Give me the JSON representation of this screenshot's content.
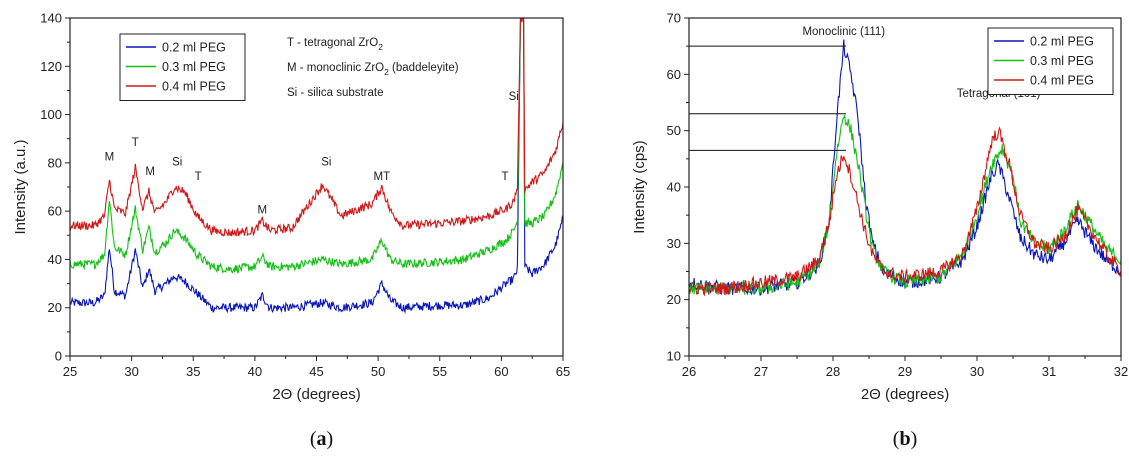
{
  "chart_data": [
    {
      "type": "line",
      "caption_letter": "a",
      "xlabel": "2Θ (degrees)",
      "ylabel": "Intensity (a.u.)",
      "xlim": [
        25,
        65
      ],
      "ylim": [
        0,
        140
      ],
      "xticks": [
        25,
        30,
        35,
        40,
        45,
        50,
        55,
        60,
        65
      ],
      "yticks": [
        0,
        20,
        40,
        60,
        80,
        100,
        120,
        140
      ],
      "legend_position": "top-left",
      "legend_box": "outlined",
      "series": [
        {
          "name": "0.2 ml PEG",
          "color": "#0a16b8",
          "points": [
            [
              25,
              22
            ],
            [
              27,
              22
            ],
            [
              27.8,
              25
            ],
            [
              28.2,
              45
            ],
            [
              28.6,
              27
            ],
            [
              29.5,
              25
            ],
            [
              30.3,
              44
            ],
            [
              30.9,
              28
            ],
            [
              31.4,
              36
            ],
            [
              31.9,
              27
            ],
            [
              32.8,
              30
            ],
            [
              33.5,
              33
            ],
            [
              34.3,
              31
            ],
            [
              35.3,
              26
            ],
            [
              36.5,
              20
            ],
            [
              38,
              20
            ],
            [
              40,
              20
            ],
            [
              40.6,
              25
            ],
            [
              41.2,
              20
            ],
            [
              43,
              20
            ],
            [
              45.5,
              22
            ],
            [
              47,
              20
            ],
            [
              49.5,
              22
            ],
            [
              50.3,
              30
            ],
            [
              51,
              23
            ],
            [
              52,
              20
            ],
            [
              55,
              21
            ],
            [
              57,
              21
            ],
            [
              59,
              24
            ],
            [
              60.4,
              30
            ],
            [
              61,
              32
            ],
            [
              61.3,
              36
            ],
            [
              61.55,
              140
            ],
            [
              61.8,
              140
            ],
            [
              61.9,
              37
            ],
            [
              62.5,
              34
            ],
            [
              63.5,
              38
            ],
            [
              64.4,
              46
            ],
            [
              65,
              57
            ]
          ]
        },
        {
          "name": "0.3 ml PEG",
          "color": "#16c016",
          "points": [
            [
              25,
              38
            ],
            [
              27,
              38
            ],
            [
              27.8,
              42
            ],
            [
              28.2,
              65
            ],
            [
              28.6,
              45
            ],
            [
              29.5,
              42
            ],
            [
              30.3,
              61
            ],
            [
              30.9,
              44
            ],
            [
              31.4,
              53
            ],
            [
              31.9,
              43
            ],
            [
              32.8,
              47
            ],
            [
              33.5,
              52
            ],
            [
              34.3,
              49
            ],
            [
              35.3,
              42
            ],
            [
              36.5,
              37
            ],
            [
              38,
              36
            ],
            [
              40,
              37
            ],
            [
              40.6,
              41
            ],
            [
              41.2,
              37
            ],
            [
              43,
              37
            ],
            [
              45.5,
              40
            ],
            [
              47,
              38
            ],
            [
              49.5,
              40
            ],
            [
              50.3,
              48
            ],
            [
              51,
              40
            ],
            [
              52,
              38
            ],
            [
              55,
              39
            ],
            [
              57,
              40
            ],
            [
              59,
              44
            ],
            [
              60.4,
              48
            ],
            [
              61,
              52
            ],
            [
              61.3,
              56
            ],
            [
              61.55,
              140
            ],
            [
              61.8,
              140
            ],
            [
              61.9,
              55
            ],
            [
              62.5,
              55
            ],
            [
              63.5,
              58
            ],
            [
              64.4,
              67
            ],
            [
              65,
              80
            ]
          ]
        },
        {
          "name": "0.4 ml PEG",
          "color": "#d01818",
          "points": [
            [
              25,
              54
            ],
            [
              27,
              54
            ],
            [
              27.8,
              58
            ],
            [
              28.2,
              73
            ],
            [
              28.6,
              61
            ],
            [
              29.5,
              59
            ],
            [
              30.3,
              78
            ],
            [
              30.9,
              61
            ],
            [
              31.4,
              68
            ],
            [
              31.9,
              59
            ],
            [
              32.8,
              64
            ],
            [
              33.5,
              70
            ],
            [
              34.3,
              68
            ],
            [
              35.3,
              58
            ],
            [
              36.5,
              52
            ],
            [
              38,
              51
            ],
            [
              40,
              52
            ],
            [
              40.6,
              56
            ],
            [
              41.2,
              52
            ],
            [
              43,
              53
            ],
            [
              45.5,
              71
            ],
            [
              47,
              58
            ],
            [
              49.5,
              63
            ],
            [
              50.3,
              70
            ],
            [
              51,
              60
            ],
            [
              52,
              54
            ],
            [
              55,
              55
            ],
            [
              57,
              56
            ],
            [
              59,
              58
            ],
            [
              60.4,
              61
            ],
            [
              61,
              64
            ],
            [
              61.3,
              70
            ],
            [
              61.55,
              140
            ],
            [
              61.8,
              140
            ],
            [
              61.9,
              69
            ],
            [
              62.5,
              72
            ],
            [
              63.5,
              76
            ],
            [
              64.4,
              85
            ],
            [
              65,
              97
            ]
          ]
        }
      ],
      "annotations": [
        {
          "text": "M",
          "x": 28.2,
          "y": 81
        },
        {
          "text": "T",
          "x": 30.3,
          "y": 87
        },
        {
          "text": "M",
          "x": 31.5,
          "y": 75
        },
        {
          "text": "Si",
          "x": 33.7,
          "y": 79
        },
        {
          "text": "T",
          "x": 35.4,
          "y": 73
        },
        {
          "text": "M",
          "x": 40.6,
          "y": 59
        },
        {
          "text": "Si",
          "x": 45.8,
          "y": 79
        },
        {
          "text": "MT",
          "x": 50.3,
          "y": 73
        },
        {
          "text": "T",
          "x": 60.3,
          "y": 73
        },
        {
          "text": "Si",
          "x": 61,
          "y": 106
        }
      ],
      "notes": [
        {
          "text": "T - tetragonal ZrO",
          "sub": "2"
        },
        {
          "text": "M - monoclinic ZrO",
          "sub": "2",
          "after": " (baddeleyite)"
        },
        {
          "text": "Si - silica substrate",
          "sub": "",
          "after": ""
        }
      ]
    },
    {
      "type": "line",
      "caption_letter": "b",
      "xlabel": "2Θ (degrees)",
      "ylabel": "Intensity (cps)",
      "xlim": [
        26,
        32
      ],
      "ylim": [
        10,
        70
      ],
      "xticks": [
        26,
        27,
        28,
        29,
        30,
        31,
        32
      ],
      "yticks": [
        10,
        20,
        30,
        40,
        50,
        60,
        70
      ],
      "legend_position": "top-right",
      "legend_box": "outlined",
      "series": [
        {
          "name": "0.2 ml PEG",
          "color": "#0a16b8",
          "points": [
            [
              26,
              23
            ],
            [
              26.5,
              22
            ],
            [
              27,
              22
            ],
            [
              27.5,
              23
            ],
            [
              27.8,
              26
            ],
            [
              27.95,
              34
            ],
            [
              28.05,
              52
            ],
            [
              28.15,
              65
            ],
            [
              28.25,
              60
            ],
            [
              28.35,
              52
            ],
            [
              28.45,
              38
            ],
            [
              28.55,
              30
            ],
            [
              28.7,
              25
            ],
            [
              29,
              23
            ],
            [
              29.5,
              24
            ],
            [
              29.8,
              27
            ],
            [
              30,
              33
            ],
            [
              30.2,
              42
            ],
            [
              30.3,
              44
            ],
            [
              30.45,
              38
            ],
            [
              30.6,
              31
            ],
            [
              30.8,
              28
            ],
            [
              31,
              27
            ],
            [
              31.2,
              30
            ],
            [
              31.4,
              34
            ],
            [
              31.6,
              30
            ],
            [
              31.8,
              27
            ],
            [
              32,
              25
            ]
          ]
        },
        {
          "name": "0.3 ml PEG",
          "color": "#16c016",
          "points": [
            [
              26,
              22
            ],
            [
              26.5,
              22
            ],
            [
              27,
              22
            ],
            [
              27.5,
              23
            ],
            [
              27.8,
              26
            ],
            [
              27.95,
              34
            ],
            [
              28.05,
              46
            ],
            [
              28.15,
              53
            ],
            [
              28.25,
              50
            ],
            [
              28.35,
              44
            ],
            [
              28.45,
              36
            ],
            [
              28.55,
              29
            ],
            [
              28.7,
              25
            ],
            [
              29,
              23
            ],
            [
              29.5,
              24
            ],
            [
              29.8,
              28
            ],
            [
              30,
              35
            ],
            [
              30.2,
              44
            ],
            [
              30.35,
              47
            ],
            [
              30.5,
              42
            ],
            [
              30.6,
              34
            ],
            [
              30.8,
              30
            ],
            [
              31,
              29
            ],
            [
              31.2,
              32
            ],
            [
              31.4,
              37
            ],
            [
              31.6,
              33
            ],
            [
              31.8,
              29
            ],
            [
              32,
              27
            ]
          ]
        },
        {
          "name": "0.4 ml PEG",
          "color": "#d01818",
          "points": [
            [
              26,
              22
            ],
            [
              26.5,
              22
            ],
            [
              27,
              23
            ],
            [
              27.5,
              24
            ],
            [
              27.8,
              27
            ],
            [
              27.95,
              34
            ],
            [
              28.05,
              42
            ],
            [
              28.15,
              46
            ],
            [
              28.25,
              42
            ],
            [
              28.35,
              37
            ],
            [
              28.45,
              32
            ],
            [
              28.55,
              28
            ],
            [
              28.7,
              25
            ],
            [
              29,
              24
            ],
            [
              29.5,
              25
            ],
            [
              29.8,
              28
            ],
            [
              30,
              36
            ],
            [
              30.2,
              48
            ],
            [
              30.3,
              50
            ],
            [
              30.45,
              44
            ],
            [
              30.6,
              35
            ],
            [
              30.8,
              30
            ],
            [
              31,
              29
            ],
            [
              31.2,
              31
            ],
            [
              31.4,
              36
            ],
            [
              31.6,
              32
            ],
            [
              31.8,
              28
            ],
            [
              32,
              25
            ]
          ]
        }
      ],
      "reference_lines": [
        65,
        53,
        46.5
      ],
      "annotations": [
        {
          "text": "Monoclinic (111)",
          "x": 28.15,
          "y": 67
        },
        {
          "text": "Tetragonal (101)",
          "x": 30.3,
          "y": 56
        }
      ]
    }
  ]
}
